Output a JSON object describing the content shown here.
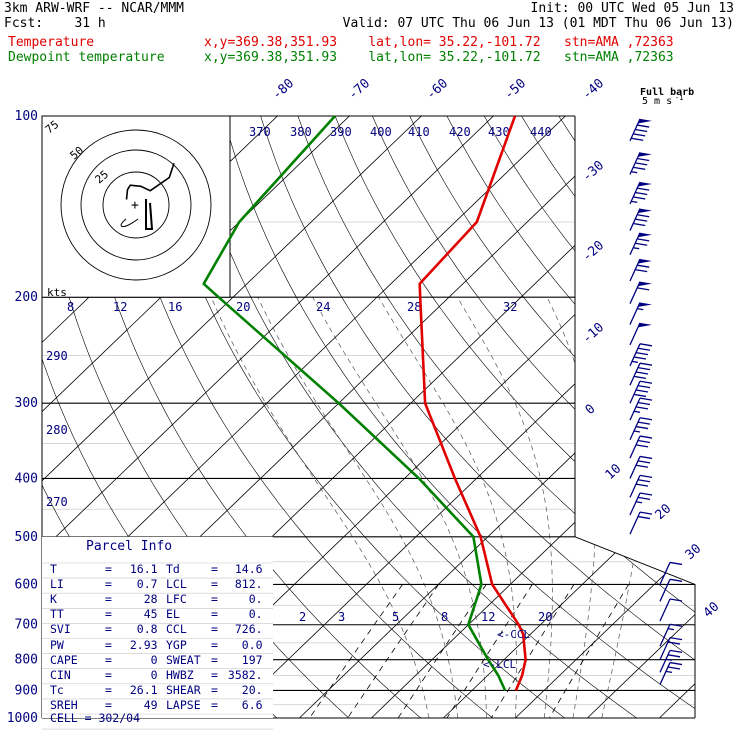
{
  "header": {
    "title": "3km ARW-WRF -- NCAR/MMM",
    "init": "Init: 00 UTC Wed 05 Jun 13",
    "fcst": "Fcst:    31 h",
    "valid": "Valid: 07 UTC Thu 06 Jun 13 (01 MDT Thu 06 Jun 13)",
    "temp_label": "Temperature",
    "dew_label": "Dewpoint temperature",
    "loc_text": "x,y=369.38,351.93    lat,lon= 35.22,-101.72   stn=AMA ,72363"
  },
  "colors": {
    "temperature": "#e00000",
    "dewpoint": "#008000",
    "text": "#000080",
    "grid": "#000000"
  },
  "barb_header": {
    "line1": "Full barb",
    "line2": "5 m s",
    "exp": "-1"
  },
  "parcel_info": {
    "title": "Parcel Info",
    "rows": [
      [
        "T",
        "16.1",
        "Td",
        "14.6"
      ],
      [
        "LI",
        "0.7",
        "LCL",
        "812."
      ],
      [
        "K",
        "28",
        "LFC",
        "0."
      ],
      [
        "TT",
        "45",
        "EL",
        "0."
      ],
      [
        "SVI",
        "0.8",
        "CCL",
        "726."
      ],
      [
        "PW",
        "2.93",
        "YGP",
        "0.0"
      ],
      [
        "CAPE",
        "0",
        "SWEAT",
        "197"
      ],
      [
        "CIN",
        "0",
        "HWBZ",
        "3582."
      ],
      [
        "Tc",
        "26.1",
        "SHEAR",
        "20."
      ],
      [
        "SREH",
        "49",
        "LAPSE",
        "6.6"
      ]
    ],
    "cell": "CELL = 302/04"
  },
  "chart_data": {
    "type": "line",
    "subtype": "skew-T log-p sounding",
    "pressure_levels": [
      "100",
      "200",
      "300",
      "400",
      "500",
      "600",
      "700",
      "800",
      "900",
      "1000"
    ],
    "plim": [
      100,
      1000
    ],
    "isotherm_labels": [
      "-80",
      "-70",
      "-60",
      "-50",
      "-40",
      "-30",
      "-20",
      "-10",
      "0",
      "10",
      "20",
      "30",
      "40"
    ],
    "theta_labels": [
      "370",
      "380",
      "390",
      "400",
      "410",
      "420",
      "430",
      "440"
    ],
    "theta_left_labels": [
      "290",
      "280",
      "270"
    ],
    "mixing_ratio_labels": [
      "2",
      "3",
      "5",
      "8",
      "12",
      "20"
    ],
    "hodograph": {
      "units": "kts",
      "ring_labels": [
        "75",
        "50",
        "25"
      ],
      "axis_labels": [
        "8",
        "12",
        "16",
        "20",
        "24",
        "28",
        "32"
      ]
    },
    "annotations": [
      "<-CCL",
      "<-LCL"
    ],
    "series": [
      {
        "name": "Temperature",
        "points": [
          [
            100,
            -67
          ],
          [
            150,
            -57
          ],
          [
            190,
            -56
          ],
          [
            200,
            -54
          ],
          [
            300,
            -38
          ],
          [
            400,
            -23
          ],
          [
            500,
            -11
          ],
          [
            600,
            -2.5
          ],
          [
            700,
            7
          ],
          [
            726,
            9
          ],
          [
            800,
            13
          ],
          [
            850,
            14.8
          ],
          [
            900,
            16.1
          ]
        ]
      },
      {
        "name": "Dewpoint temperature",
        "points": [
          [
            100,
            -92
          ],
          [
            150,
            -90
          ],
          [
            190,
            -86
          ],
          [
            200,
            -82
          ],
          [
            300,
            -50
          ],
          [
            400,
            -28
          ],
          [
            500,
            -12
          ],
          [
            600,
            -4
          ],
          [
            700,
            0
          ],
          [
            800,
            7.8
          ],
          [
            850,
            11.5
          ],
          [
            900,
            14.6
          ]
        ]
      }
    ],
    "hodograph_path_kts": [
      [
        -10,
        5
      ],
      [
        -9,
        14
      ],
      [
        -6,
        18
      ],
      [
        5,
        17
      ],
      [
        15,
        13
      ],
      [
        35,
        25
      ],
      [
        40,
        38
      ]
    ],
    "wind_barbs": [
      {
        "p": 110,
        "kts": 90
      },
      {
        "p": 125,
        "kts": 85
      },
      {
        "p": 140,
        "kts": 85
      },
      {
        "p": 155,
        "kts": 80
      },
      {
        "p": 170,
        "kts": 75
      },
      {
        "p": 188,
        "kts": 70
      },
      {
        "p": 205,
        "kts": 60
      },
      {
        "p": 222,
        "kts": 55
      },
      {
        "p": 240,
        "kts": 50
      },
      {
        "p": 260,
        "kts": 45
      },
      {
        "p": 280,
        "kts": 40
      },
      {
        "p": 300,
        "kts": 40
      },
      {
        "p": 320,
        "kts": 35
      },
      {
        "p": 345,
        "kts": 35
      },
      {
        "p": 370,
        "kts": 30
      },
      {
        "p": 400,
        "kts": 30
      },
      {
        "p": 430,
        "kts": 30
      },
      {
        "p": 460,
        "kts": 25
      },
      {
        "p": 495,
        "kts": 20
      },
      {
        "p": 600,
        "kts": 10
      },
      {
        "p": 640,
        "kts": 10
      },
      {
        "p": 690,
        "kts": 10
      },
      {
        "p": 760,
        "kts": 15
      },
      {
        "p": 800,
        "kts": 20
      },
      {
        "p": 840,
        "kts": 25
      },
      {
        "p": 880,
        "kts": 25
      }
    ]
  }
}
